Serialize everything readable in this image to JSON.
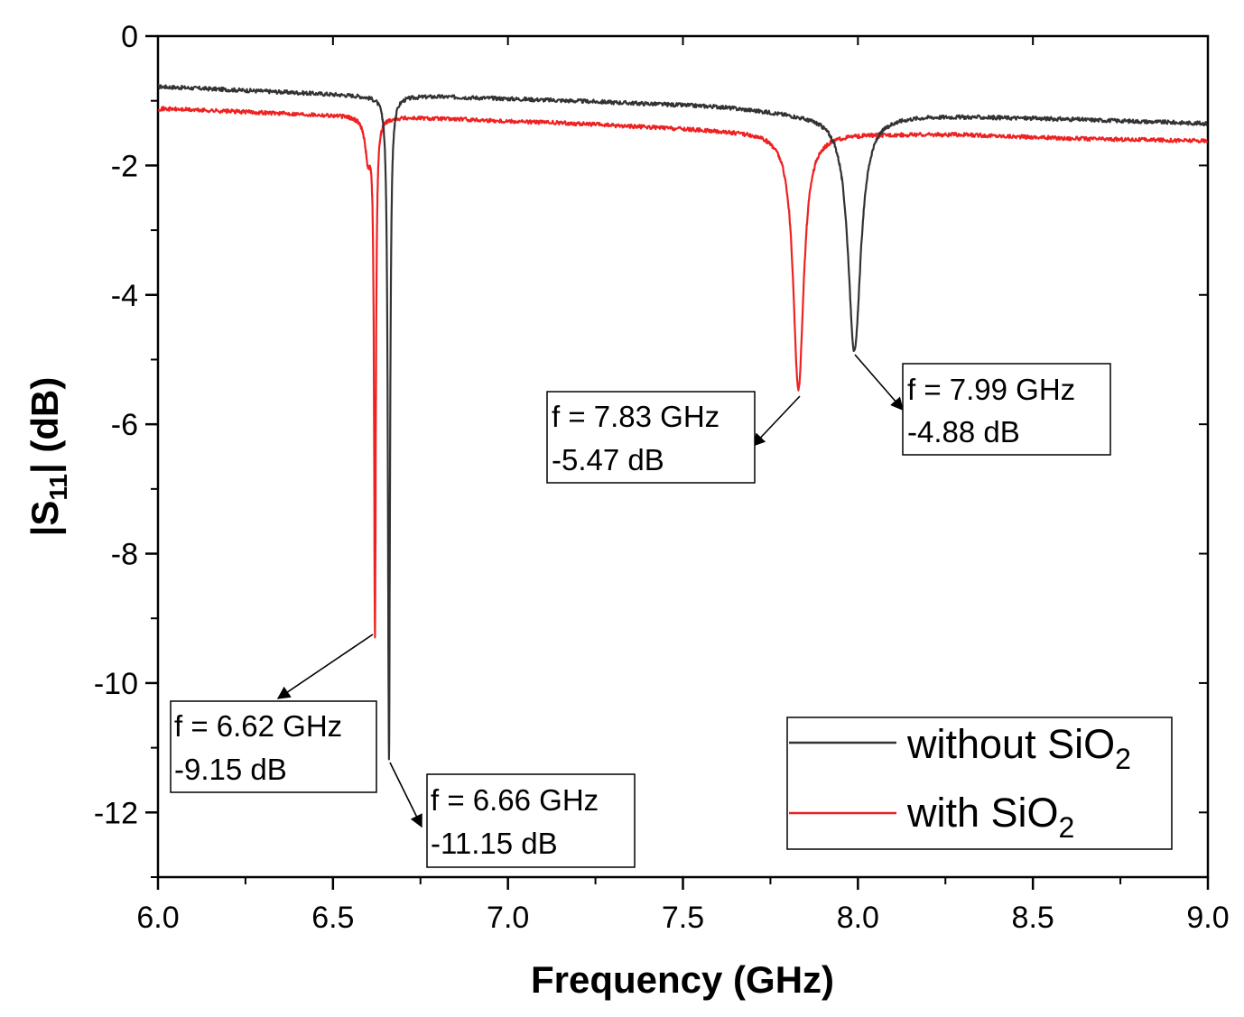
{
  "chart_data": {
    "type": "line",
    "title": "",
    "xlabel": "Frequency (GHz)",
    "ylabel_main": "|S",
    "ylabel_sub": "11",
    "ylabel_end": "| (dB)",
    "xlim": [
      6.0,
      9.0
    ],
    "ylim": [
      -13,
      0
    ],
    "xticks": [
      6.0,
      6.5,
      7.0,
      7.5,
      8.0,
      8.5,
      9.0
    ],
    "xtick_labels": [
      "6.0",
      "6.5",
      "7.0",
      "7.5",
      "8.0",
      "8.5",
      "9.0"
    ],
    "yticks": [
      0,
      -2,
      -4,
      -6,
      -8,
      -10,
      -12
    ],
    "ytick_labels": [
      "0",
      "-2",
      "-4",
      "-6",
      "-8",
      "-10",
      "-12"
    ],
    "grid": false,
    "legend_position": "bottom-right",
    "series": [
      {
        "name": "without SiO",
        "name_sub": "2",
        "color": "#333333",
        "baseline": [
          [
            6.0,
            -0.78
          ],
          [
            6.3,
            -0.85
          ],
          [
            6.6,
            -0.92
          ],
          [
            6.8,
            -0.93
          ],
          [
            7.2,
            -1.0
          ],
          [
            7.6,
            -1.08
          ],
          [
            7.85,
            -1.2
          ],
          [
            8.2,
            -1.22
          ],
          [
            8.6,
            -1.28
          ],
          [
            9.0,
            -1.35
          ]
        ],
        "dips": [
          {
            "f0": 6.66,
            "depth": -11.15,
            "width": 0.0035
          },
          {
            "f0": 7.99,
            "depth": -4.88,
            "width": 0.022
          }
        ]
      },
      {
        "name": "with SiO",
        "name_sub": "2",
        "color": "#ee2222",
        "baseline": [
          [
            6.0,
            -1.12
          ],
          [
            6.4,
            -1.2
          ],
          [
            6.7,
            -1.25
          ],
          [
            7.2,
            -1.35
          ],
          [
            7.6,
            -1.45
          ],
          [
            7.9,
            -1.5
          ],
          [
            8.3,
            -1.52
          ],
          [
            8.6,
            -1.58
          ],
          [
            9.0,
            -1.62
          ]
        ],
        "dips": [
          {
            "f0": 6.62,
            "depth": -9.15,
            "width": 0.003
          },
          {
            "f0": 6.6,
            "depth": -1.85,
            "width": 0.01
          },
          {
            "f0": 7.83,
            "depth": -5.47,
            "width": 0.018
          }
        ]
      }
    ],
    "annotations": [
      {
        "line1": "f = 6.62 GHz",
        "line2": "-9.15 dB",
        "point": [
          6.62,
          -9.15
        ]
      },
      {
        "line1": "f = 6.66 GHz",
        "line2": "-11.15 dB",
        "point": [
          6.66,
          -11.15
        ]
      },
      {
        "line1": "f = 7.83 GHz",
        "line2": "-5.47 dB",
        "point": [
          7.83,
          -5.47
        ]
      },
      {
        "line1": "f = 7.99 GHz",
        "line2": "-4.88 dB",
        "point": [
          7.99,
          -4.88
        ]
      }
    ]
  }
}
